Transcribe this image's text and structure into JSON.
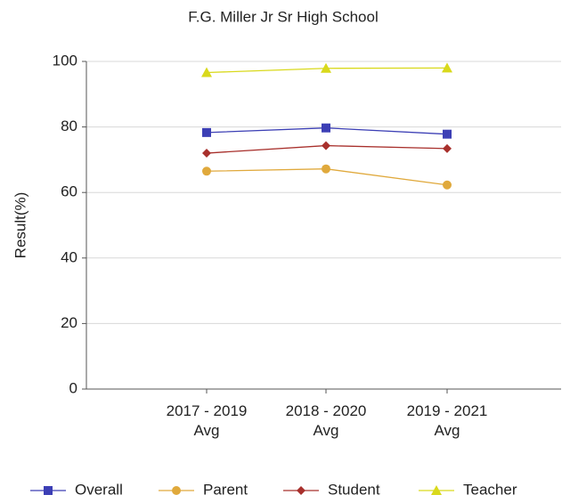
{
  "chart_data": {
    "type": "line",
    "title": "F.G. Miller Jr Sr High School",
    "y_label": "Result(%)",
    "categories": [
      "2017 - 2019 Avg",
      "2018 - 2020 Avg",
      "2019 - 2021 Avg"
    ],
    "series": [
      {
        "name": "Overall",
        "color": "#3c3fb5",
        "marker": "square",
        "values": [
          78.3,
          79.7,
          77.8
        ]
      },
      {
        "name": "Parent",
        "color": "#e0a93c",
        "marker": "circle",
        "values": [
          66.5,
          67.2,
          62.3
        ]
      },
      {
        "name": "Student",
        "color": "#a8302c",
        "marker": "diamond",
        "values": [
          72,
          74.3,
          73.4
        ]
      },
      {
        "name": "Teacher",
        "color": "#d9d91c",
        "marker": "triangle",
        "values": [
          96.6,
          97.9,
          98
        ]
      }
    ],
    "ylim": [
      0,
      100
    ],
    "yticks": [
      0,
      20,
      40,
      60,
      80,
      100
    ],
    "grid": true,
    "legend": "bottom"
  }
}
